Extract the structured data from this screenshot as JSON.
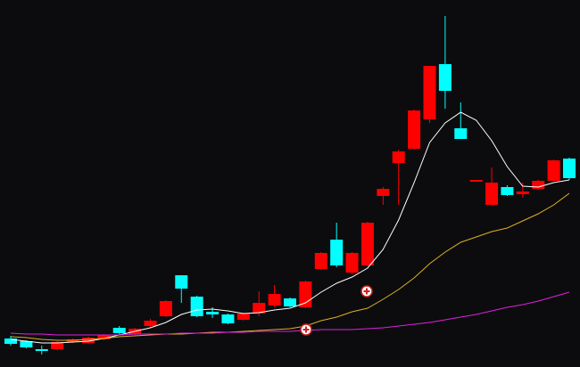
{
  "chart_data": {
    "type": "candlestick",
    "up_color": "#ff0000",
    "down_color": "#00ffff",
    "ylim": [
      0,
      412
    ],
    "open": [
      32,
      29,
      20,
      20,
      28,
      27,
      31,
      44,
      37,
      46,
      57,
      103,
      79,
      62,
      59,
      53,
      60,
      69,
      77,
      67,
      110,
      143,
      106,
      114,
      192,
      229,
      245,
      278,
      340,
      268,
      208,
      182,
      202,
      194,
      200,
      209,
      234
    ],
    "high": [
      35,
      30,
      24,
      29,
      32,
      34,
      37,
      46,
      44,
      54,
      75,
      103,
      80,
      67,
      60,
      61,
      85,
      92,
      78,
      97,
      129,
      162,
      129,
      163,
      202,
      244,
      289,
      338,
      394,
      297,
      210,
      224,
      204,
      207,
      210,
      233,
      235
    ],
    "low": [
      24,
      21,
      14,
      19,
      27,
      26,
      30,
      36,
      36,
      44,
      56,
      72,
      56,
      55,
      48,
      52,
      57,
      67,
      67,
      66,
      109,
      112,
      104,
      113,
      182,
      182,
      244,
      274,
      290,
      256,
      208,
      182,
      192,
      190,
      199,
      208,
      210
    ],
    "close": [
      26,
      22,
      18,
      28,
      31,
      33,
      36,
      38,
      43,
      52,
      74,
      88,
      57,
      59,
      49,
      60,
      72,
      82,
      68,
      96,
      128,
      114,
      128,
      162,
      200,
      242,
      288,
      338,
      310,
      256,
      210,
      207,
      193,
      197,
      209,
      232,
      212
    ],
    "series": [
      {
        "color": "#ffffff",
        "values": [
          31,
          29,
          27,
          27,
          28,
          29,
          32,
          36,
          40,
          44,
          50,
          59,
          64,
          65,
          63,
          60,
          61,
          64,
          66,
          72,
          84,
          94,
          101,
          111,
          132,
          165,
          207,
          252,
          274,
          286,
          277,
          254,
          225,
          203,
          202,
          207,
          210
        ]
      },
      {
        "color": "#e0b020",
        "values": [
          34,
          33,
          31,
          30,
          30,
          31,
          32,
          34,
          35,
          36,
          37,
          37,
          38,
          39,
          39,
          40,
          41,
          42,
          43,
          46,
          52,
          56,
          62,
          66,
          76,
          87,
          100,
          116,
          129,
          140,
          146,
          152,
          156,
          164,
          172,
          182,
          195
        ]
      },
      {
        "color": "#e020e0",
        "values": [
          38,
          37,
          37,
          36,
          36,
          36,
          36,
          36,
          37,
          37,
          37,
          38,
          38,
          38,
          39,
          39,
          40,
          40,
          40,
          41,
          42,
          42,
          42,
          43,
          44,
          46,
          48,
          50,
          53,
          56,
          59,
          63,
          67,
          70,
          74,
          79,
          84
        ]
      }
    ]
  }
}
